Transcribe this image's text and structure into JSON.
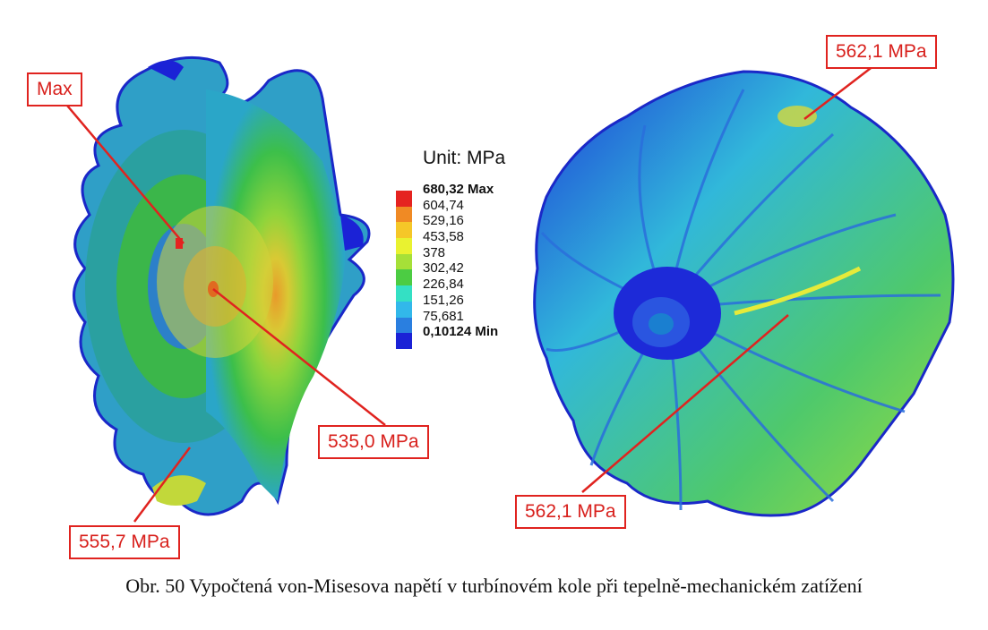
{
  "legend": {
    "unit": "Unit: MPa",
    "max_label": "680,32 Max",
    "levels": [
      "604,74",
      "529,16",
      "453,58",
      "378",
      "302,42",
      "226,84",
      "151,26",
      "75,681"
    ],
    "min_label": "0,10124 Min",
    "colors": [
      "#e52320",
      "#f08a24",
      "#f5c728",
      "#e9f230",
      "#a6e038",
      "#4ccc43",
      "#34e0c4",
      "#32b8ea",
      "#2a7fe0",
      "#1b22d6"
    ]
  },
  "callouts": {
    "left_max": "Max",
    "left_center": "535,0 MPa",
    "left_bottom": "555,7 MPa",
    "right_top": "562,1 MPa",
    "right_bottom": "562,1 MPa"
  },
  "caption": "Obr. 50 Vypočtená von-Misesova napětí v turbínovém kole při tepelně-mechanickém zatížení"
}
